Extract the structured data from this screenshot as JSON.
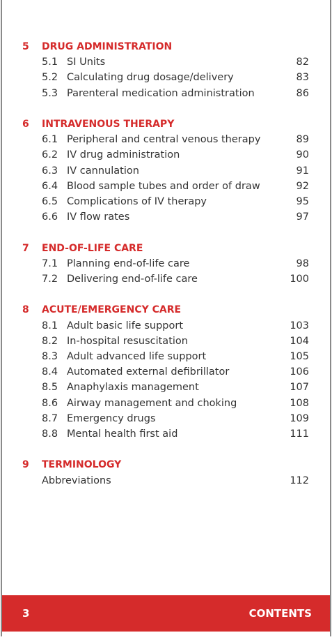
{
  "sections": [
    {
      "number": 5,
      "title": "DRUG ADMINISTRATION",
      "items": [
        {
          "number": "5.1",
          "title": "SI Units",
          "page": 82
        },
        {
          "number": "5.2",
          "title": "Calculating drug dosage/delivery",
          "page": 83
        },
        {
          "number": "5.3",
          "title": "Parenteral medication administration",
          "page": 86
        }
      ]
    },
    {
      "number": 6,
      "title": "INTRAVENOUS THERAPY",
      "items": [
        {
          "number": "6.1",
          "title": "Peripheral and central venous therapy",
          "page": 89
        },
        {
          "number": "6.2",
          "title": "IV drug administration",
          "page": 90
        },
        {
          "number": "6.3",
          "title": "IV cannulation",
          "page": 91
        },
        {
          "number": "6.4",
          "title": "Blood sample tubes and order of draw",
          "page": 92
        },
        {
          "number": "6.5",
          "title": "Complications of IV therapy",
          "page": 95
        },
        {
          "number": "6.6",
          "title": "IV flow rates",
          "page": 97
        }
      ]
    },
    {
      "number": 7,
      "title": "END-OF-LIFE CARE",
      "items": [
        {
          "number": "7.1",
          "title": "Planning end-of-life care",
          "page": 98
        },
        {
          "number": "7.2",
          "title": "Delivering end-of-life care",
          "page": 100
        }
      ]
    },
    {
      "number": 8,
      "title": "ACUTE/EMERGENCY CARE",
      "items": [
        {
          "number": "8.1",
          "title": "Adult basic life support",
          "page": 103
        },
        {
          "number": "8.2",
          "title": "In-hospital resuscitation",
          "page": 104
        },
        {
          "number": "8.3",
          "title": "Adult advanced life support",
          "page": 105
        },
        {
          "number": "8.4",
          "title": "Automated external defibrillator",
          "page": 106
        },
        {
          "number": "8.5",
          "title": "Anaphylaxis management",
          "page": 107
        },
        {
          "number": "8.6",
          "title": "Airway management and choking",
          "page": 108
        },
        {
          "number": "8.7",
          "title": "Emergency drugs",
          "page": 109
        },
        {
          "number": "8.8",
          "title": "Mental health first aid",
          "page": 111
        }
      ]
    },
    {
      "number": 9,
      "title": "TERMINOLOGY",
      "items": [
        {
          "title": "Abbreviations",
          "page": 112
        }
      ]
    }
  ],
  "footer": {
    "page_number": 3,
    "title": "CONTENTS"
  }
}
